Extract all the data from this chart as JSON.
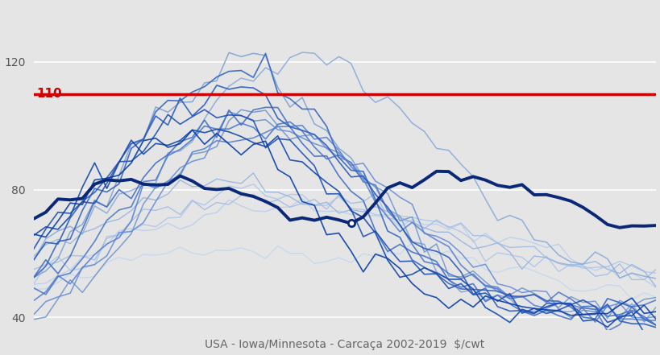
{
  "title": "USA - Iowa/Minnesota - Carcaça 2002-2019  $/cwt",
  "red_line_value": 110,
  "red_line_label": "110",
  "ylim": [
    36,
    138
  ],
  "yticks": [
    40,
    80,
    120
  ],
  "weeks": 52,
  "background_color": "#e5e5e5",
  "red_color": "#cc0000",
  "noise_seed": 42,
  "years_data": {
    "2002": {
      "base": [
        48,
        49,
        50,
        51,
        52,
        53,
        55,
        57,
        58,
        59,
        60,
        61,
        62,
        63,
        63,
        63,
        63,
        62,
        62,
        61,
        61,
        60,
        60,
        59,
        59,
        59,
        59,
        60,
        60,
        61,
        61,
        61,
        61,
        61,
        60,
        60,
        59,
        58,
        57,
        56,
        55,
        54,
        53,
        52,
        51,
        50,
        50,
        49,
        49,
        48,
        48,
        47
      ],
      "color": "#c5d8ef",
      "lw": 1.0,
      "noise": 1.5
    },
    "2003": {
      "base": [
        50,
        52,
        54,
        56,
        58,
        60,
        62,
        64,
        65,
        67,
        68,
        69,
        70,
        71,
        72,
        73,
        74,
        75,
        75,
        75,
        75,
        75,
        74,
        73,
        73,
        72,
        72,
        71,
        71,
        70,
        70,
        70,
        69,
        69,
        68,
        67,
        66,
        65,
        64,
        63,
        62,
        61,
        60,
        59,
        58,
        57,
        56,
        55,
        54,
        53,
        52,
        51
      ],
      "color": "#bbcfeb",
      "lw": 1.0,
      "noise": 1.5
    },
    "2004": {
      "base": [
        52,
        54,
        56,
        57,
        59,
        61,
        63,
        65,
        67,
        68,
        70,
        72,
        74,
        76,
        77,
        78,
        79,
        80,
        80,
        80,
        80,
        79,
        79,
        78,
        77,
        76,
        75,
        74,
        73,
        72,
        71,
        70,
        69,
        68,
        67,
        66,
        65,
        64,
        63,
        62,
        61,
        60,
        59,
        58,
        57,
        56,
        55,
        54,
        53,
        52,
        51,
        50
      ],
      "color": "#afc6e7",
      "lw": 1.0,
      "noise": 2.0
    },
    "2005": {
      "base": [
        55,
        56,
        58,
        60,
        62,
        64,
        66,
        68,
        70,
        72,
        73,
        74,
        75,
        76,
        77,
        78,
        78,
        79,
        79,
        79,
        79,
        78,
        78,
        77,
        77,
        76,
        76,
        75,
        74,
        73,
        72,
        71,
        70,
        69,
        68,
        67,
        66,
        65,
        64,
        63,
        62,
        61,
        60,
        59,
        58,
        57,
        56,
        55,
        55,
        54,
        53,
        52
      ],
      "color": "#a3bde3",
      "lw": 1.0,
      "noise": 2.0
    },
    "2006": {
      "base": [
        58,
        60,
        62,
        64,
        66,
        68,
        70,
        72,
        74,
        76,
        78,
        79,
        80,
        81,
        82,
        82,
        82,
        82,
        82,
        81,
        80,
        79,
        79,
        78,
        77,
        76,
        75,
        74,
        73,
        72,
        71,
        70,
        69,
        68,
        67,
        66,
        65,
        64,
        63,
        62,
        61,
        60,
        59,
        58,
        57,
        56,
        55,
        55,
        54,
        53,
        52,
        51
      ],
      "color": "#97b4df",
      "lw": 1.0,
      "noise": 2.0
    },
    "2007": {
      "base": [
        60,
        62,
        64,
        66,
        68,
        71,
        74,
        77,
        80,
        83,
        86,
        90,
        94,
        98,
        102,
        106,
        110,
        114,
        117,
        119,
        121,
        122,
        122,
        122,
        121,
        120,
        118,
        116,
        113,
        110,
        107,
        104,
        100,
        96,
        92,
        88,
        84,
        80,
        76,
        73,
        70,
        67,
        64,
        62,
        60,
        58,
        56,
        55,
        54,
        53,
        52,
        51
      ],
      "color": "#8aaad9",
      "lw": 1.1,
      "noise": 2.5
    },
    "2008": {
      "base": [
        55,
        58,
        61,
        65,
        69,
        74,
        79,
        84,
        90,
        95,
        100,
        105,
        109,
        113,
        116,
        118,
        119,
        119,
        118,
        116,
        113,
        110,
        106,
        102,
        98,
        94,
        90,
        85,
        80,
        75,
        70,
        65,
        61,
        57,
        54,
        51,
        49,
        47,
        46,
        45,
        44,
        44,
        43,
        43,
        42,
        42,
        42,
        41,
        41,
        41,
        40,
        40
      ],
      "color": "#7ea0d3",
      "lw": 1.1,
      "noise": 2.5
    },
    "2009": {
      "base": [
        42,
        43,
        45,
        47,
        50,
        53,
        57,
        61,
        66,
        71,
        76,
        81,
        86,
        90,
        94,
        97,
        100,
        102,
        103,
        103,
        102,
        101,
        99,
        97,
        94,
        91,
        88,
        84,
        80,
        76,
        72,
        68,
        64,
        61,
        58,
        55,
        52,
        50,
        48,
        47,
        46,
        45,
        45,
        44,
        44,
        43,
        43,
        43,
        42,
        42,
        42,
        41
      ],
      "color": "#7296cd",
      "lw": 1.1,
      "noise": 2.5
    },
    "2010": {
      "base": [
        44,
        46,
        48,
        51,
        54,
        57,
        61,
        65,
        69,
        73,
        77,
        81,
        85,
        89,
        92,
        95,
        97,
        99,
        100,
        100,
        99,
        98,
        97,
        95,
        93,
        91,
        88,
        85,
        82,
        79,
        75,
        72,
        68,
        65,
        62,
        59,
        56,
        54,
        51,
        49,
        48,
        47,
        46,
        45,
        44,
        44,
        43,
        43,
        43,
        42,
        42,
        41
      ],
      "color": "#668cd7",
      "lw": 1.1,
      "noise": 2.0
    },
    "2011": {
      "base": [
        46,
        48,
        50,
        53,
        56,
        60,
        64,
        68,
        72,
        76,
        80,
        84,
        88,
        91,
        94,
        96,
        98,
        99,
        99,
        99,
        98,
        97,
        95,
        93,
        91,
        88,
        85,
        82,
        79,
        75,
        72,
        68,
        65,
        62,
        59,
        56,
        53,
        51,
        49,
        47,
        46,
        45,
        44,
        44,
        43,
        43,
        42,
        42,
        42,
        41,
        41,
        41
      ],
      "color": "#5a82d1",
      "lw": 1.2,
      "noise": 2.5
    },
    "2012": {
      "base": [
        48,
        50,
        53,
        56,
        59,
        63,
        67,
        71,
        75,
        79,
        83,
        87,
        91,
        94,
        97,
        99,
        101,
        102,
        102,
        101,
        100,
        98,
        96,
        94,
        91,
        88,
        84,
        81,
        77,
        73,
        69,
        65,
        62,
        59,
        56,
        53,
        51,
        49,
        47,
        46,
        45,
        44,
        43,
        43,
        42,
        42,
        41,
        41,
        41,
        40,
        40,
        40
      ],
      "color": "#4e78cb",
      "lw": 1.2,
      "noise": 2.5
    },
    "2013": {
      "base": [
        52,
        55,
        58,
        62,
        66,
        70,
        74,
        78,
        82,
        86,
        90,
        93,
        96,
        98,
        100,
        101,
        102,
        102,
        101,
        100,
        98,
        96,
        94,
        91,
        88,
        84,
        80,
        76,
        72,
        68,
        64,
        61,
        58,
        55,
        53,
        51,
        49,
        47,
        46,
        45,
        44,
        43,
        43,
        42,
        42,
        41,
        41,
        41,
        40,
        40,
        40,
        39
      ],
      "color": "#426ec5",
      "lw": 1.2,
      "noise": 2.5
    },
    "2014": {
      "base": [
        58,
        61,
        65,
        69,
        73,
        78,
        83,
        88,
        93,
        98,
        103,
        107,
        111,
        114,
        116,
        118,
        119,
        119,
        118,
        116,
        113,
        110,
        106,
        102,
        97,
        92,
        87,
        82,
        77,
        72,
        67,
        63,
        59,
        56,
        53,
        51,
        49,
        47,
        46,
        45,
        44,
        43,
        43,
        42,
        42,
        41,
        41,
        41,
        40,
        40,
        40,
        39
      ],
      "color": "#3664bf",
      "lw": 1.2,
      "noise": 3.0
    },
    "2015": {
      "base": [
        62,
        65,
        68,
        72,
        76,
        80,
        84,
        88,
        92,
        96,
        99,
        102,
        105,
        107,
        109,
        110,
        110,
        110,
        109,
        107,
        105,
        103,
        100,
        97,
        93,
        89,
        85,
        81,
        77,
        73,
        69,
        65,
        61,
        58,
        55,
        52,
        50,
        48,
        47,
        46,
        45,
        44,
        43,
        43,
        42,
        42,
        41,
        41,
        41,
        40,
        40,
        40
      ],
      "color": "#2a5ab9",
      "lw": 1.2,
      "noise": 2.5
    },
    "2016": {
      "base": [
        64,
        67,
        70,
        73,
        77,
        80,
        84,
        87,
        90,
        93,
        96,
        98,
        100,
        101,
        102,
        102,
        101,
        100,
        99,
        97,
        95,
        93,
        90,
        87,
        84,
        80,
        76,
        72,
        68,
        64,
        61,
        58,
        55,
        53,
        51,
        49,
        48,
        47,
        46,
        45,
        44,
        44,
        43,
        43,
        42,
        42,
        42,
        41,
        41,
        41,
        40,
        40
      ],
      "color": "#1e50b3",
      "lw": 1.2,
      "noise": 2.5
    },
    "2017": {
      "base": [
        66,
        69,
        72,
        75,
        78,
        82,
        85,
        88,
        91,
        94,
        96,
        98,
        99,
        100,
        100,
        100,
        99,
        98,
        96,
        94,
        92,
        89,
        86,
        83,
        80,
        76,
        72,
        68,
        65,
        61,
        58,
        55,
        53,
        51,
        49,
        47,
        46,
        45,
        44,
        43,
        43,
        42,
        42,
        41,
        41,
        41,
        40,
        40,
        40,
        40,
        39,
        39
      ],
      "color": "#1246ad",
      "lw": 1.2,
      "noise": 2.5
    },
    "2018": {
      "base": [
        68,
        71,
        74,
        77,
        80,
        83,
        86,
        89,
        91,
        93,
        95,
        96,
        97,
        97,
        97,
        96,
        95,
        93,
        91,
        89,
        86,
        83,
        80,
        76,
        72,
        68,
        64,
        60,
        57,
        54,
        51,
        49,
        48,
        47,
        46,
        45,
        44,
        44,
        43,
        43,
        42,
        42,
        42,
        41,
        41,
        41,
        40,
        40,
        40,
        40,
        39,
        39
      ],
      "color": "#063ca7",
      "lw": 1.2,
      "noise": 2.5
    },
    "2019": {
      "base": [
        72,
        74,
        76,
        78,
        80,
        81,
        82,
        82,
        83,
        83,
        83,
        83,
        82,
        82,
        81,
        80,
        79,
        78,
        77,
        76,
        74,
        73,
        72,
        71,
        70,
        69,
        68,
        72,
        76,
        80,
        82,
        84,
        85,
        85,
        85,
        84,
        83,
        82,
        81,
        80,
        79,
        78,
        77,
        76,
        75,
        74,
        73,
        72,
        71,
        70,
        69,
        68
      ],
      "color": "#0a2878",
      "lw": 2.8,
      "noise": 1.2
    }
  },
  "dot_week": 27,
  "dot_color": "#0a2878"
}
